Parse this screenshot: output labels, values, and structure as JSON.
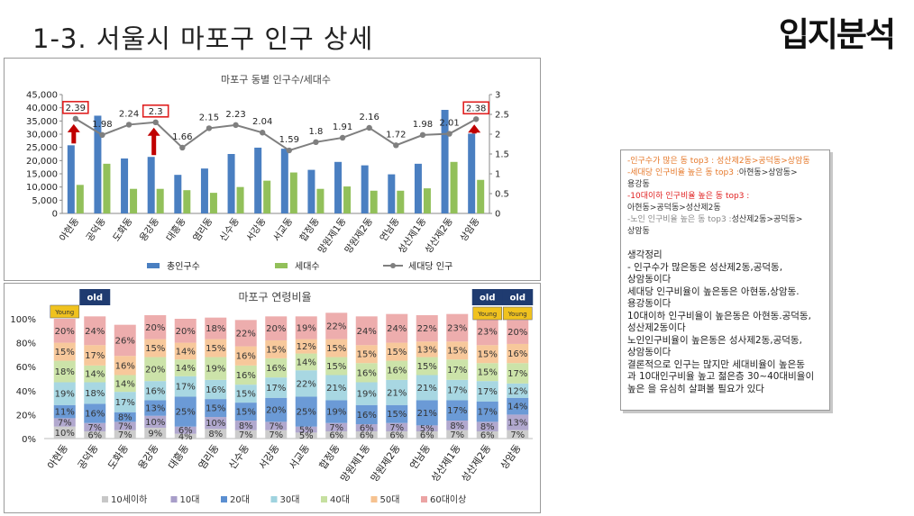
{
  "slide": {
    "title": "1-3. 서울시 마포구  인구 상세",
    "brand": "입지분석"
  },
  "notes": {
    "top3_pop": "-인구수가 많은 동 top3 : 성산제2동>공덕동>상암동",
    "top3_household_label": "-세대당 인구비율 높은 동 top3 :",
    "top3_household_value": "아현동>상암동>",
    "top3_household_cont": "용강동",
    "top3_young_label": "-10대이하 인구비율 높은 동 top3 :",
    "top3_young_value": "아현동>공덕동>성산제2동",
    "top3_old_label": "-노인 인구비율 높은 동 top3 :",
    "top3_old_value": "성산제2동>공덕동>",
    "top3_old_cont": "상암동",
    "summary_lines": [
      "생각정리",
      "- 인구수가 많은동은 성산제2동,공덕동,",
      "상암동이다",
      "세대당 인구비율이 높은동은 아현동,상암동.",
      "용강동이다",
      "10대이하 인구비율이 높은동은 아현동.공덕동,",
      "성산제2동이다",
      "노인인구비율이 높은동은 성사제2동,공덕동,",
      "상암동이다",
      "결론적으로 인구는 많지만 세대비율이 높은동",
      "과 10대인구비율 높고 젊은층 30~40대비율이",
      "높은 을 유심히 살펴볼 필요가 있다"
    ]
  },
  "chart_data": [
    {
      "type": "bar",
      "title": "마포구 동별 인구수/세대수",
      "categories": [
        "아현동",
        "공덕동",
        "도화동",
        "용강동",
        "대흥동",
        "염리동",
        "신수동",
        "서강동",
        "서교동",
        "합정동",
        "망원제1동",
        "망원제2동",
        "연남동",
        "성산제1동",
        "성산제2동",
        "상암동"
      ],
      "series": [
        {
          "name": "총인구수",
          "color": "#4a7fc1",
          "values": [
            25800,
            37000,
            20800,
            21400,
            14600,
            17000,
            22500,
            24900,
            24500,
            16500,
            19500,
            18200,
            14800,
            18800,
            39200,
            30200
          ]
        },
        {
          "name": "세대수",
          "color": "#92c05a",
          "values": [
            10800,
            18800,
            9300,
            9300,
            8800,
            7800,
            10000,
            12400,
            15500,
            9300,
            10200,
            8600,
            8600,
            9500,
            19500,
            12700
          ]
        },
        {
          "name": "세대당 인구",
          "color": "#7f7f7f",
          "axis": "right",
          "values": [
            2.39,
            1.98,
            2.24,
            2.3,
            1.66,
            2.15,
            2.23,
            2.04,
            1.59,
            1.8,
            1.91,
            2.16,
            1.72,
            1.98,
            2.01,
            2.38
          ]
        }
      ],
      "data_labels": [
        "2.39",
        "1.98",
        "2.24",
        "2.3",
        "1.66",
        "2.15",
        "2.23",
        "2.04",
        "1.59",
        "1.8",
        "1.91",
        "2.16",
        "1.72",
        "1.98",
        "2.01",
        "2.38"
      ],
      "highlighted": [
        "아현동",
        "용강동",
        "상암동"
      ],
      "y_left": {
        "range": [
          0,
          45000
        ],
        "ticks": [
          "0",
          "5,000",
          "10,000",
          "15,000",
          "20,000",
          "25,000",
          "30,000",
          "35,000",
          "40,000",
          "45,000"
        ]
      },
      "y_right": {
        "range": [
          0,
          3
        ],
        "ticks": [
          "0",
          "0.5",
          "1",
          "1.5",
          "2",
          "2.5",
          "3"
        ]
      },
      "legend": {
        "placement": "bottom"
      }
    },
    {
      "type": "bar",
      "stacked": "percent",
      "title": "마포구 연령비율",
      "categories": [
        "아현동",
        "공덕동",
        "도화동",
        "용강동",
        "대흥동",
        "염리동",
        "신수동",
        "서강동",
        "서교동",
        "합정동",
        "망원제1동",
        "망원제2동",
        "연남동",
        "성산제1동",
        "성산제2동",
        "상암동"
      ],
      "series": [
        {
          "name": "10세이하",
          "color": "#c7c7c7",
          "values": [
            10,
            6,
            7,
            9,
            4,
            8,
            7,
            7,
            5,
            6,
            6,
            6,
            6,
            7,
            6,
            7
          ]
        },
        {
          "name": "10대",
          "color": "#a89ec9",
          "values": [
            7,
            7,
            7,
            10,
            6,
            10,
            8,
            7,
            5,
            7,
            6,
            7,
            5,
            8,
            8,
            13
          ]
        },
        {
          "name": "20대",
          "color": "#5b8fd1",
          "values": [
            11,
            16,
            8,
            13,
            25,
            15,
            15,
            20,
            25,
            19,
            16,
            15,
            21,
            17,
            17,
            14
          ]
        },
        {
          "name": "30대",
          "color": "#9fd3df",
          "values": [
            19,
            18,
            17,
            16,
            17,
            16,
            15,
            17,
            22,
            21,
            19,
            21,
            21,
            17,
            17,
            12
          ]
        },
        {
          "name": "40대",
          "color": "#c6e0a0",
          "values": [
            18,
            14,
            14,
            20,
            14,
            19,
            16,
            16,
            14,
            15,
            16,
            16,
            15,
            17,
            15,
            17
          ]
        },
        {
          "name": "50대",
          "color": "#f6c290",
          "values": [
            15,
            17,
            16,
            15,
            14,
            15,
            16,
            15,
            12,
            15,
            15,
            15,
            13,
            15,
            15,
            16
          ]
        },
        {
          "name": "60대이상",
          "color": "#eba4a4",
          "values": [
            20,
            24,
            26,
            20,
            20,
            18,
            22,
            20,
            19,
            22,
            24,
            24,
            22,
            23,
            23,
            20
          ]
        }
      ],
      "y_ticks": [
        "0%",
        "20%",
        "40%",
        "60%",
        "80%",
        "100%"
      ],
      "badges": [
        {
          "category": "아현동",
          "text": "Young",
          "kind": "young"
        },
        {
          "category": "공덕동",
          "text": "old",
          "kind": "old"
        },
        {
          "category": "성산제2동",
          "text": "old",
          "kind": "old"
        },
        {
          "category": "성산제2동",
          "text": "Young",
          "kind": "young"
        },
        {
          "category": "상암동",
          "text": "old",
          "kind": "old"
        },
        {
          "category": "상암동",
          "text": "Young",
          "kind": "young"
        }
      ],
      "legend": {
        "placement": "bottom"
      }
    }
  ]
}
